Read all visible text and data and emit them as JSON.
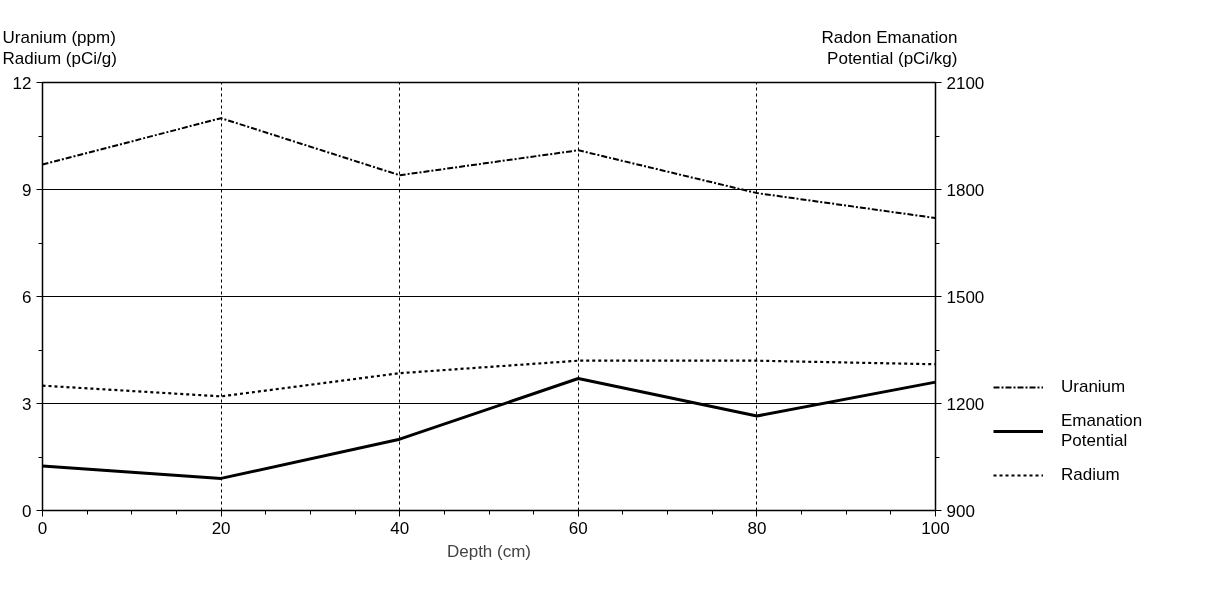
{
  "chart_data": {
    "type": "line",
    "xlabel": "Depth (cm)",
    "ylabel": "Uranium (ppm)\nRadium (pCi/g)",
    "y2label": "Radon Emanation\nPotential (pCi/kg)",
    "x": [
      0,
      20,
      40,
      60,
      80,
      100
    ],
    "xlim": [
      0,
      100
    ],
    "xticks": [
      0,
      {
        "value": 5,
        "label": null
      },
      {
        "value": 10,
        "label": null
      },
      {
        "value": 15,
        "label": null
      },
      20,
      {
        "value": 25,
        "label": null
      },
      {
        "value": 30,
        "label": null
      },
      {
        "value": 35,
        "label": null
      },
      40,
      {
        "value": 45,
        "label": null
      },
      {
        "value": 50,
        "label": null
      },
      {
        "value": 55,
        "label": null
      },
      60,
      {
        "value": 65,
        "label": null
      },
      {
        "value": 70,
        "label": null
      },
      {
        "value": 75,
        "label": null
      },
      80,
      {
        "value": 85,
        "label": null
      },
      {
        "value": 90,
        "label": null
      },
      {
        "value": 95,
        "label": null
      },
      100
    ],
    "ylim": [
      0,
      12
    ],
    "yticks": [
      0,
      {
        "value": 1.5,
        "label": null
      },
      3,
      {
        "value": 4.5,
        "label": null
      },
      6,
      {
        "value": 7.5,
        "label": null
      },
      9,
      {
        "value": 10.5,
        "label": null
      },
      12
    ],
    "y2lim": [
      900,
      2100
    ],
    "y2ticks": [
      900,
      {
        "value": 1050,
        "label": null
      },
      1200,
      {
        "value": 1350,
        "label": null
      },
      1500,
      {
        "value": 1650,
        "label": null
      },
      1800,
      {
        "value": 1950,
        "label": null
      },
      2100
    ],
    "grid": true,
    "legend": "right",
    "marker": "none",
    "series": [
      {
        "name": "Uranium",
        "color": "#000000",
        "line_style": "dashdot",
        "values": [
          9.7,
          11.0,
          9.4,
          10.1,
          8.9,
          8.2
        ]
      },
      {
        "name": "Emanation\nPotential",
        "color": "#000000",
        "line_style": "solid",
        "axis": "y2",
        "values": [
          1025,
          990,
          1100,
          1270,
          1165,
          1260
        ]
      },
      {
        "name": "Radium",
        "color": "#000000",
        "line_style": "dotted",
        "values": [
          3.5,
          3.2,
          3.85,
          4.2,
          4.2,
          4.1
        ]
      }
    ]
  }
}
